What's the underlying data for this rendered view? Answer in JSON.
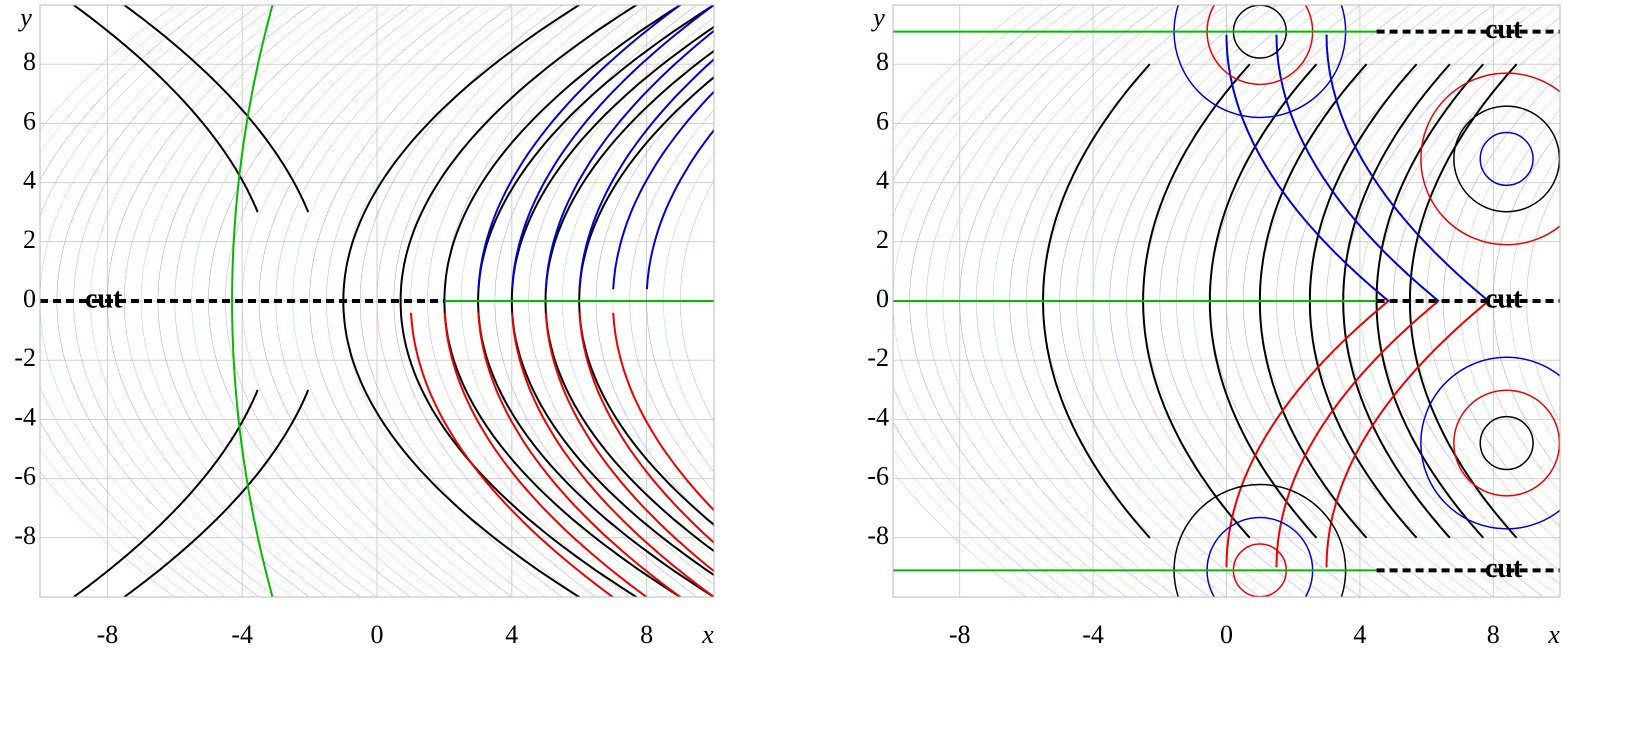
{
  "chart_data": [
    {
      "type": "contour",
      "x_label": "x",
      "y_label": "y",
      "xlim": [
        -10,
        10
      ],
      "ylim": [
        -10,
        10
      ],
      "xticks": [
        -8,
        -4,
        0,
        4,
        8
      ],
      "yticks": [
        -8,
        -6,
        -4,
        -2,
        0,
        2,
        4,
        6,
        8
      ],
      "grid": true,
      "annotations": [
        "cut"
      ]
    },
    {
      "type": "contour",
      "x_label": "x",
      "y_label": "y",
      "xlim": [
        -10,
        10
      ],
      "ylim": [
        -10,
        10
      ],
      "xticks": [
        -8,
        -4,
        0,
        4,
        8
      ],
      "yticks": [
        -8,
        -6,
        -4,
        -2,
        0,
        2,
        4,
        6,
        8
      ],
      "grid": true,
      "annotations": [
        "cut",
        "cut",
        "cut"
      ]
    }
  ]
}
